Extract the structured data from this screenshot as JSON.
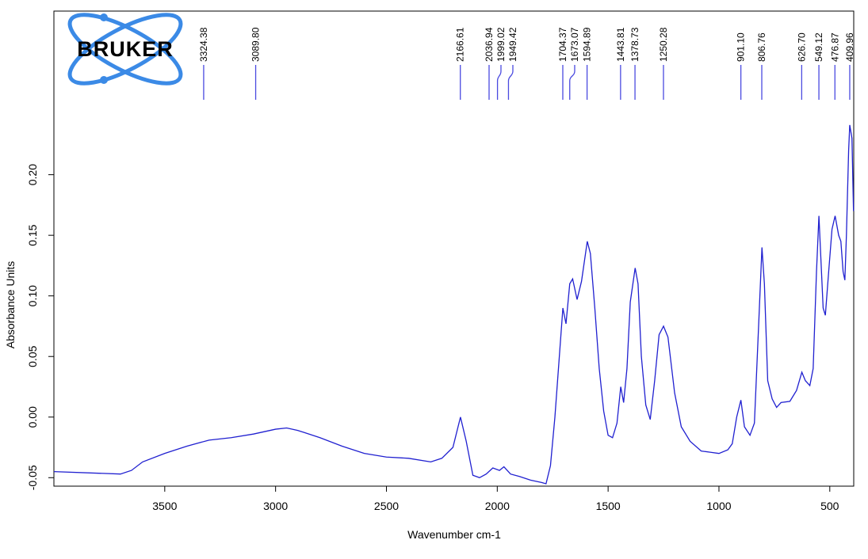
{
  "logo": "BRUKER",
  "chart_data": {
    "type": "line",
    "xlabel": "Wavenumber cm-1",
    "ylabel": "Absorbance Units",
    "color": "#2020d0",
    "peak_color": "#4a4ae0",
    "xlim": [
      4000,
      392
    ],
    "ylim": [
      -0.057,
      0.335
    ],
    "xticks": [
      3500,
      3000,
      2500,
      2000,
      1500,
      1000,
      500
    ],
    "yticks": [
      -0.05,
      {
        "value": 0,
        "label": "0.00"
      },
      0.05,
      {
        "value": 0.1,
        "label": "0.10"
      },
      0.15,
      {
        "value": 0.2,
        "label": "0.20"
      }
    ],
    "peaks": [
      {
        "value": 3324.38,
        "label": "3324.38"
      },
      {
        "value": 3089.8,
        "label": "3089.80"
      },
      {
        "value": 2166.61,
        "label": "2166.61"
      },
      {
        "value": 2036.94,
        "label": "2036.94"
      },
      {
        "value": 1999.02,
        "label": "1999.02"
      },
      {
        "value": 1949.42,
        "label": "1949.42"
      },
      {
        "value": 1704.37,
        "label": "1704.37"
      },
      {
        "value": 1673.07,
        "label": "1673.07"
      },
      {
        "value": 1594.89,
        "label": "1594.89"
      },
      {
        "value": 1443.81,
        "label": "1443.81"
      },
      {
        "value": 1378.73,
        "label": "1378.73"
      },
      {
        "value": 1250.28,
        "label": "1250.28"
      },
      {
        "value": 901.1,
        "label": "901.10"
      },
      {
        "value": 806.76,
        "label": "806.76"
      },
      {
        "value": 626.7,
        "label": "626.70"
      },
      {
        "value": 549.12,
        "label": "549.12"
      },
      {
        "value": 476.87,
        "label": "476.87"
      },
      {
        "value": 409.96,
        "label": "409.96"
      }
    ],
    "x": [
      4000,
      3700,
      3650,
      3600,
      3500,
      3400,
      3300,
      3200,
      3100,
      3000,
      2950,
      2900,
      2800,
      2700,
      2600,
      2500,
      2400,
      2300,
      2250,
      2200,
      2166,
      2140,
      2110,
      2080,
      2050,
      2020,
      1990,
      1970,
      1940,
      1900,
      1850,
      1800,
      1780,
      1760,
      1740,
      1720,
      1704,
      1690,
      1673,
      1660,
      1640,
      1620,
      1594,
      1580,
      1560,
      1540,
      1520,
      1500,
      1480,
      1460,
      1443,
      1430,
      1415,
      1400,
      1378,
      1365,
      1350,
      1330,
      1310,
      1290,
      1270,
      1250,
      1230,
      1200,
      1170,
      1130,
      1080,
      1040,
      1000,
      960,
      940,
      920,
      901,
      885,
      860,
      840,
      820,
      806,
      795,
      780,
      760,
      740,
      720,
      680,
      650,
      626,
      610,
      590,
      575,
      560,
      549,
      540,
      530,
      520,
      505,
      490,
      476,
      460,
      450,
      440,
      432,
      425,
      415,
      410,
      400,
      393
    ],
    "values": [
      -0.045,
      -0.047,
      -0.044,
      -0.037,
      -0.03,
      -0.024,
      -0.019,
      -0.017,
      -0.014,
      -0.01,
      -0.009,
      -0.011,
      -0.017,
      -0.024,
      -0.03,
      -0.033,
      -0.034,
      -0.037,
      -0.034,
      -0.025,
      0.0,
      -0.02,
      -0.048,
      -0.05,
      -0.047,
      -0.042,
      -0.044,
      -0.041,
      -0.047,
      -0.049,
      -0.052,
      -0.054,
      -0.055,
      -0.04,
      0.0,
      0.05,
      0.09,
      0.077,
      0.11,
      0.114,
      0.097,
      0.112,
      0.145,
      0.135,
      0.09,
      0.04,
      0.005,
      -0.015,
      -0.017,
      -0.005,
      0.025,
      0.012,
      0.04,
      0.095,
      0.123,
      0.11,
      0.05,
      0.01,
      -0.002,
      0.03,
      0.068,
      0.075,
      0.066,
      0.02,
      -0.008,
      -0.02,
      -0.028,
      -0.029,
      -0.03,
      -0.027,
      -0.022,
      0.0,
      0.014,
      -0.008,
      -0.015,
      -0.005,
      0.08,
      0.14,
      0.11,
      0.03,
      0.015,
      0.008,
      0.012,
      0.013,
      0.022,
      0.037,
      0.03,
      0.026,
      0.04,
      0.12,
      0.166,
      0.13,
      0.09,
      0.084,
      0.12,
      0.155,
      0.166,
      0.15,
      0.145,
      0.12,
      0.113,
      0.15,
      0.22,
      0.241,
      0.23,
      0.17
    ]
  }
}
